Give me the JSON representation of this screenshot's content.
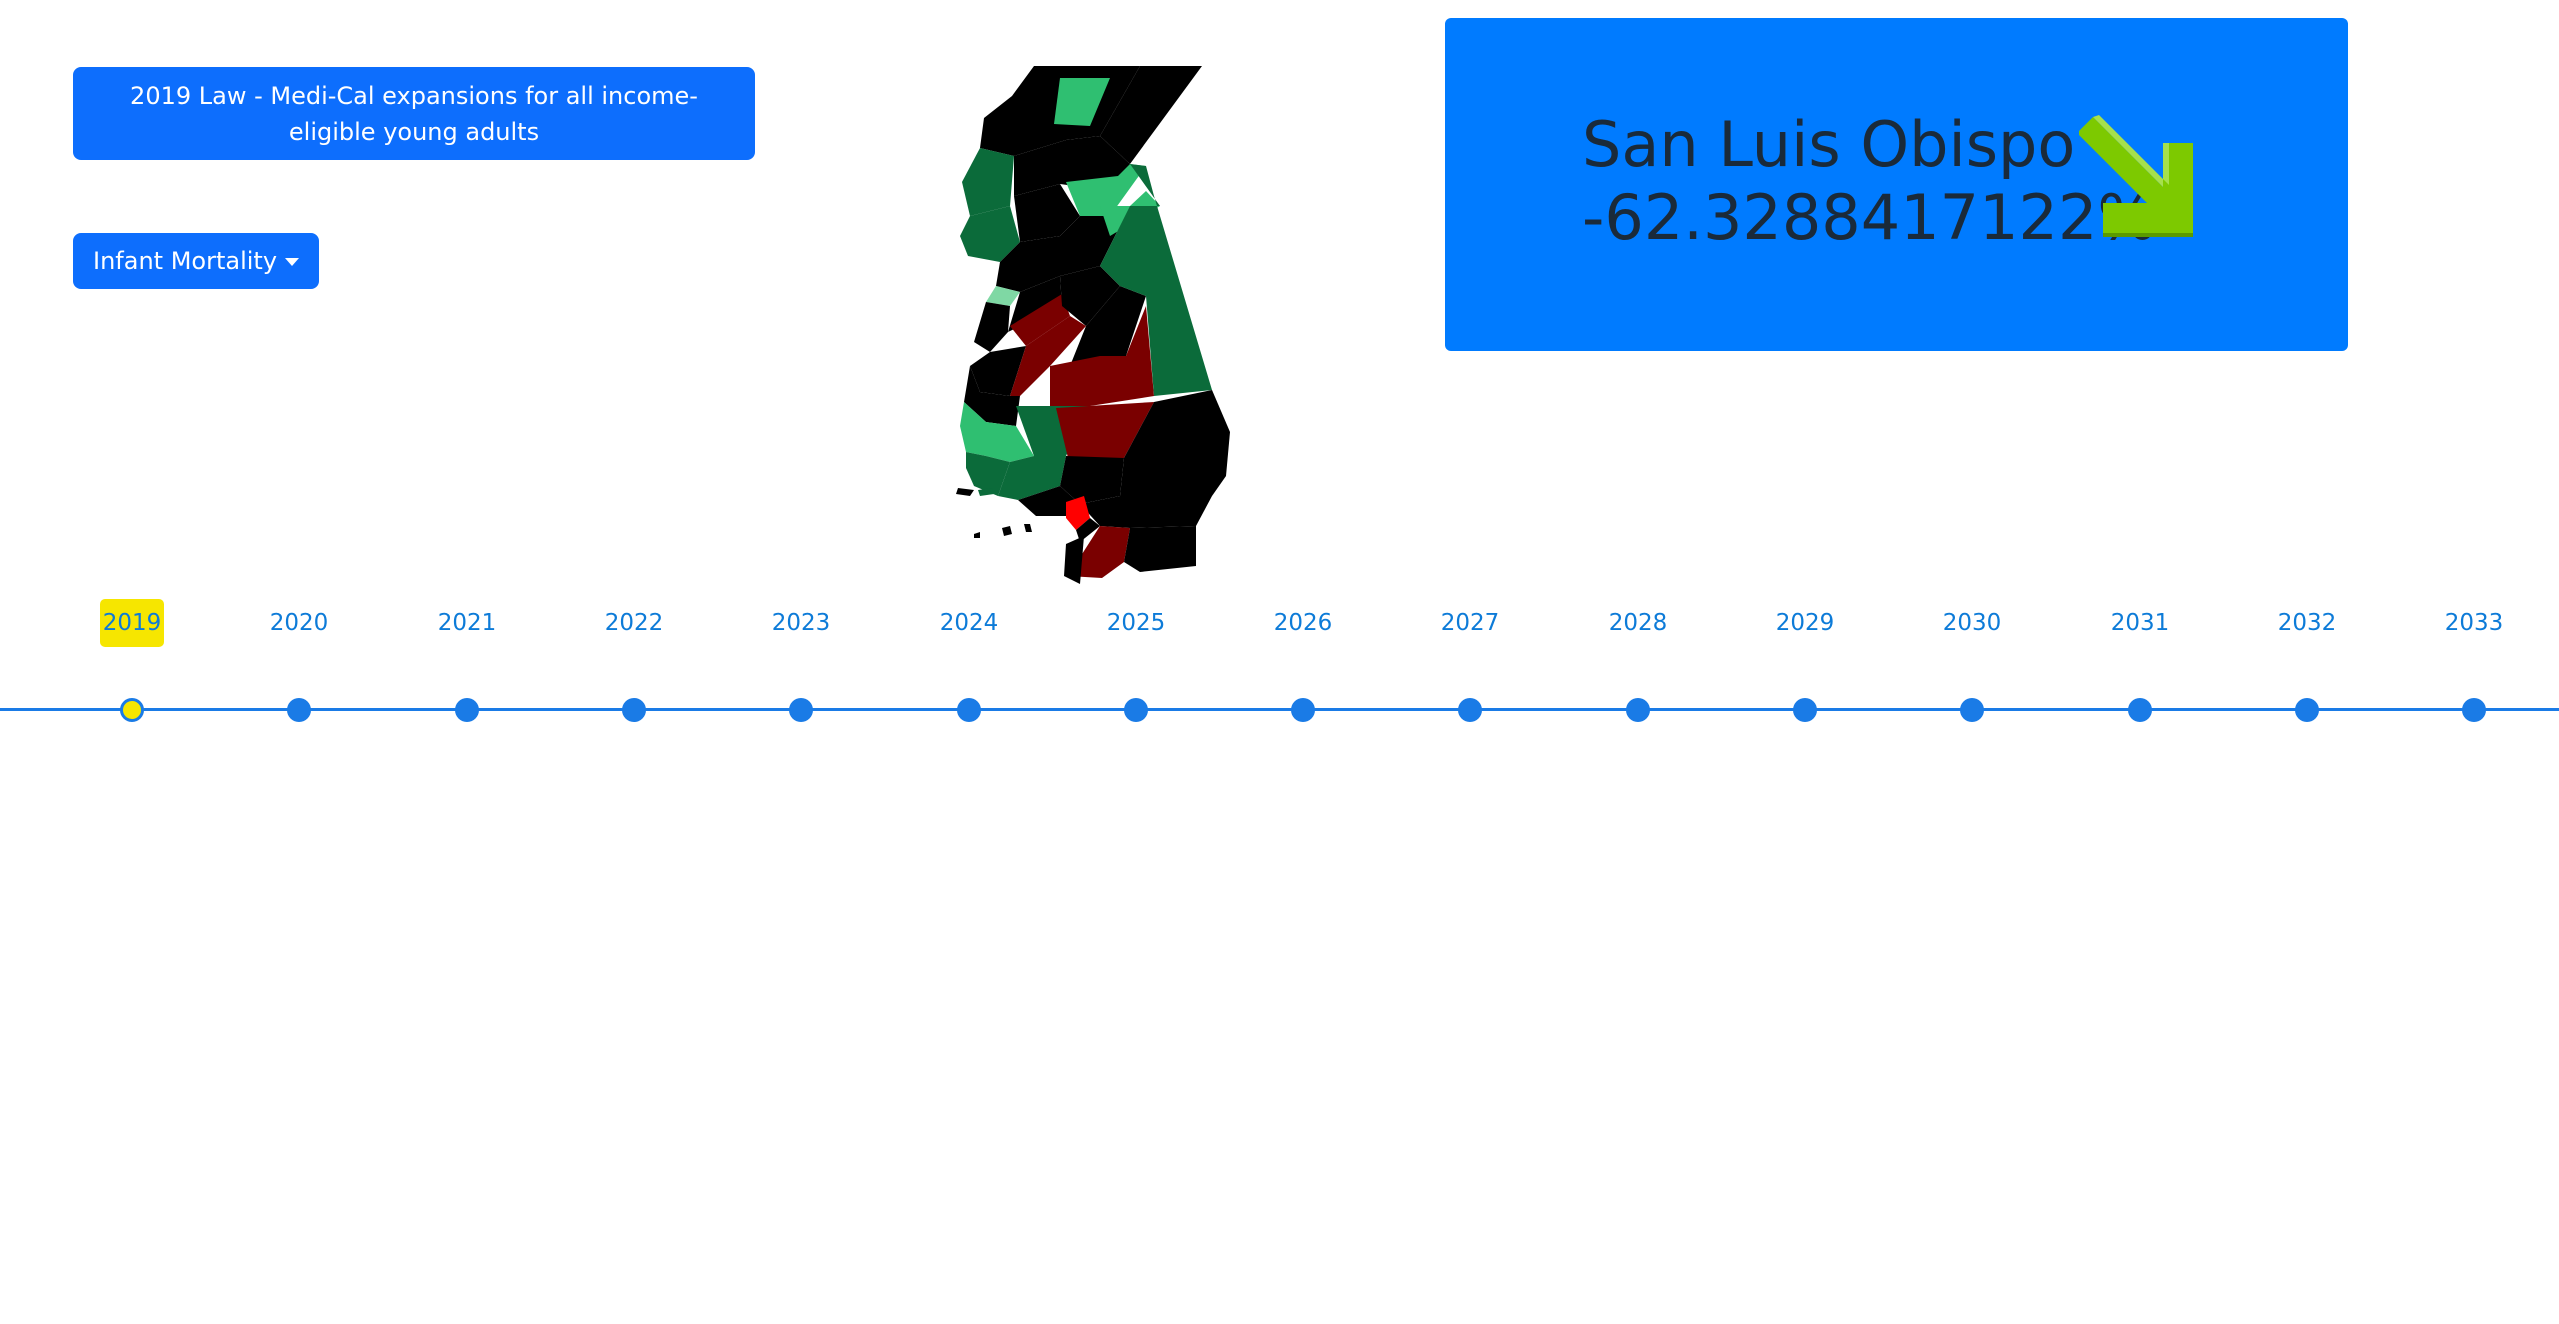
{
  "law_button": {
    "label": "2019 Law - Medi-Cal expansions for all income-eligible young adults"
  },
  "metric_dropdown": {
    "label": "Infant Mortality"
  },
  "info_card": {
    "county": "San Luis Obispo",
    "change": "-62.3288417122%",
    "trend_icon": "down-right-arrow-icon"
  },
  "timeline": {
    "selected": "2019",
    "years": [
      "2019",
      "2020",
      "2021",
      "2022",
      "2023",
      "2024",
      "2025",
      "2026",
      "2027",
      "2028",
      "2029",
      "2030",
      "2031",
      "2032",
      "2033"
    ]
  },
  "colors": {
    "primary": "#0d6efd",
    "card": "#007bff",
    "timeline": "#1a7be6",
    "highlight": "#f6e600",
    "arrow": "#7dc900",
    "map_black": "#000000",
    "map_dark_green": "#0b6b3a",
    "map_green": "#2fbf71",
    "map_light_green": "#7fd8a4",
    "map_dark_red": "#7a0000",
    "map_red": "#ff0000"
  }
}
